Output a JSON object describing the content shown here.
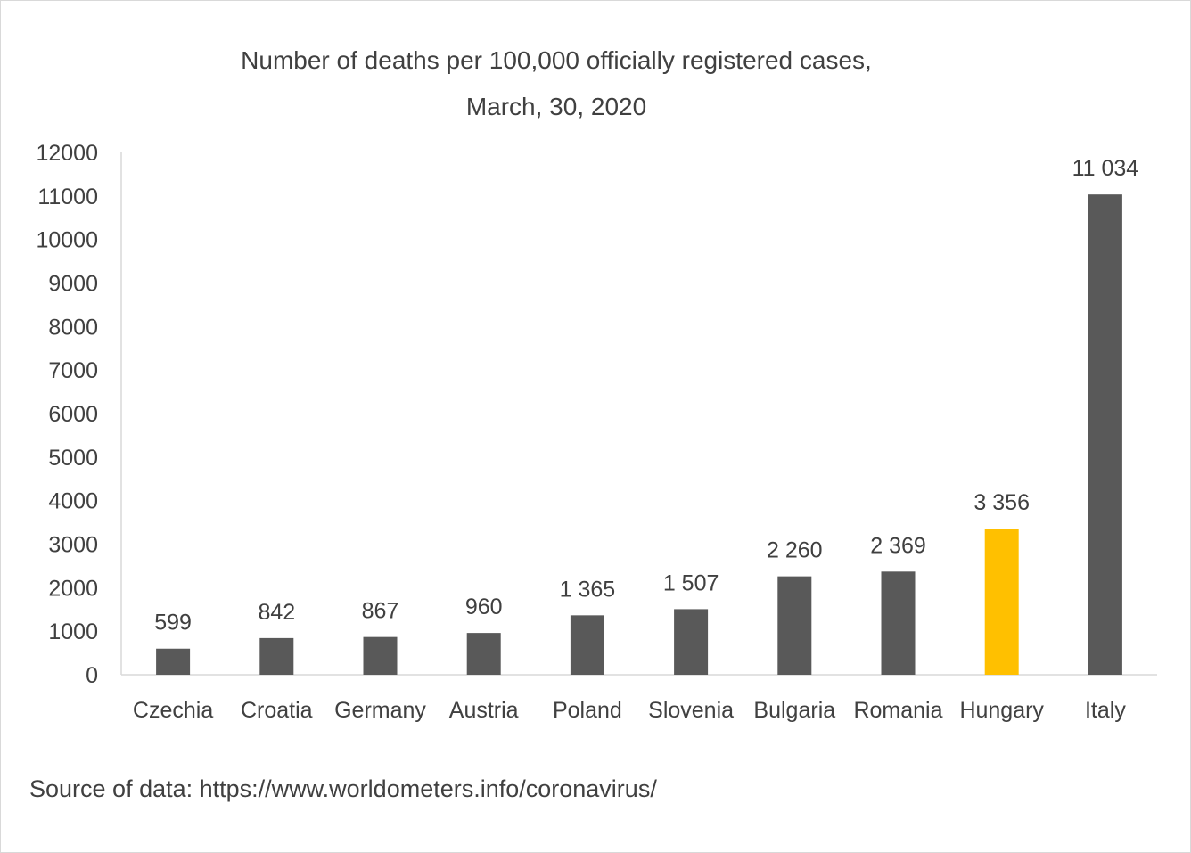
{
  "chart_data": {
    "type": "bar",
    "title": "Number of deaths per 100,000 officially registered cases,",
    "subtitle": "March, 30, 2020",
    "categories": [
      "Czechia",
      "Croatia",
      "Germany",
      "Austria",
      "Poland",
      "Slovenia",
      "Bulgaria",
      "Romania",
      "Hungary",
      "Italy"
    ],
    "values": [
      599,
      842,
      867,
      960,
      1365,
      1507,
      2260,
      2369,
      3356,
      11034
    ],
    "data_labels": [
      "599",
      "842",
      "867",
      "960",
      "1 365",
      "1 507",
      "2 260",
      "2 369",
      "3 356",
      "11 034"
    ],
    "bar_colors": [
      "#595959",
      "#595959",
      "#595959",
      "#595959",
      "#595959",
      "#595959",
      "#595959",
      "#595959",
      "#ffc000",
      "#595959"
    ],
    "ylim": [
      0,
      12000
    ],
    "yticks": [
      0,
      1000,
      2000,
      3000,
      4000,
      5000,
      6000,
      7000,
      8000,
      9000,
      10000,
      11000,
      12000
    ],
    "xlabel": "",
    "ylabel": "",
    "grid": false,
    "legend": "none"
  },
  "source_note": "Source of data: https://www.worldometers.info/coronavirus/",
  "colors": {
    "bar_default": "#595959",
    "bar_highlight": "#ffc000",
    "axis_line": "#d9d9d9",
    "text": "#404040"
  }
}
